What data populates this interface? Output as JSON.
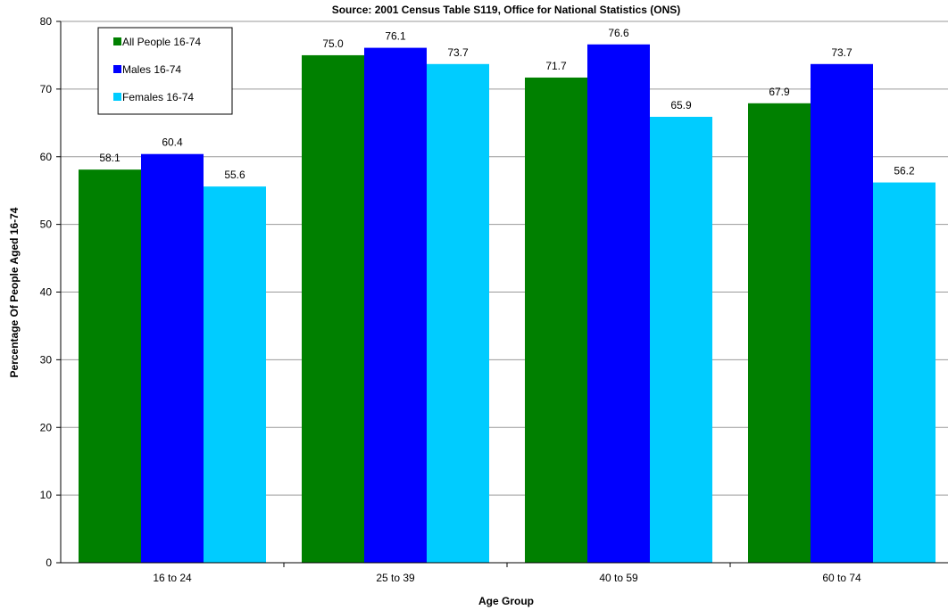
{
  "chart_data": {
    "type": "bar",
    "subtitle": "Source: 2001 Census Table S119, Office for National Statistics (ONS)",
    "xlabel": "Age Group",
    "ylabel": "Percentage Of People Aged 16-74",
    "categories": [
      "16 to 24",
      "25 to 39",
      "40 to 59",
      "60 to 74"
    ],
    "ylim": [
      0,
      80
    ],
    "yticks": [
      0,
      10,
      20,
      30,
      40,
      50,
      60,
      70,
      80
    ],
    "grid": true,
    "legend_position": "top-left",
    "series": [
      {
        "name": "All People 16-74",
        "color": "#008000",
        "values": [
          58.1,
          75.0,
          71.7,
          67.9
        ],
        "labels": [
          "58.1",
          "75.0",
          "71.7",
          "67.9"
        ]
      },
      {
        "name": "Males 16-74",
        "color": "#0000FF",
        "values": [
          60.4,
          76.1,
          76.6,
          73.7
        ],
        "labels": [
          "60.4",
          "76.1",
          "76.6",
          "73.7"
        ]
      },
      {
        "name": "Females 16-74",
        "color": "#00CCFF",
        "values": [
          55.6,
          73.7,
          65.9,
          56.2
        ],
        "labels": [
          "55.6",
          "73.7",
          "65.9",
          "56.2"
        ]
      }
    ]
  }
}
